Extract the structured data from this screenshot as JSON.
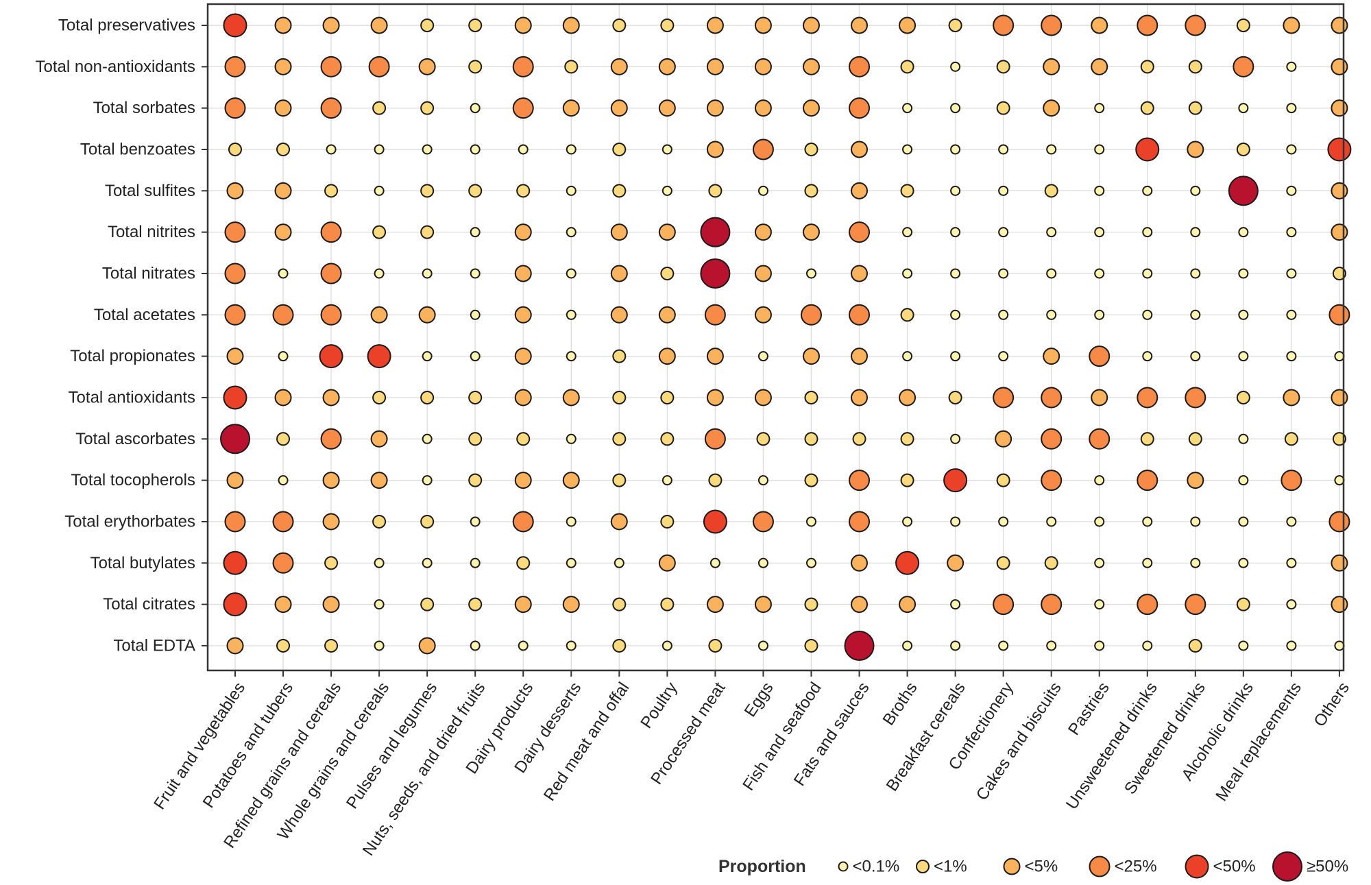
{
  "chart_data": {
    "type": "bubble-matrix",
    "rows": [
      "Total preservatives",
      "Total non-antioxidants",
      "Total sorbates",
      "Total benzoates",
      "Total sulfites",
      "Total nitrites",
      "Total nitrates",
      "Total acetates",
      "Total propionates",
      "Total antioxidants",
      "Total ascorbates",
      "Total tocopherols",
      "Total erythorbates",
      "Total butylates",
      "Total citrates",
      "Total EDTA"
    ],
    "columns": [
      "Fruit and vegetables",
      "Potatoes and tubers",
      "Refined grains and cereals",
      "Whole grains and cereals",
      "Pulses and legumes",
      "Nuts, seeds, and dried fruits",
      "Dairy products",
      "Dairy desserts",
      "Red meat and offal",
      "Poultry",
      "Processed meat",
      "Eggs",
      "Fish and seafood",
      "Fats and sauces",
      "Broths",
      "Breakfast cereals",
      "Confectionery",
      "Cakes and biscuits",
      "Pastries",
      "Unsweetened drinks",
      "Sweetened drinks",
      "Alcoholic drinks",
      "Meal replacements",
      "Others"
    ],
    "legend": {
      "title": "Proportion",
      "categories": [
        "<0.1%",
        "<1%",
        "<5%",
        "<25%",
        "<50%",
        "≥50%"
      ],
      "colors": [
        "#fff3b0",
        "#fbd97d",
        "#fbb25c",
        "#f68a46",
        "#ea4128",
        "#b8122e"
      ]
    },
    "values": [
      [
        4,
        2,
        2,
        2,
        1,
        1,
        2,
        2,
        1,
        1,
        2,
        2,
        2,
        2,
        2,
        1,
        3,
        3,
        2,
        3,
        3,
        1,
        2,
        2
      ],
      [
        3,
        2,
        3,
        3,
        2,
        1,
        3,
        1,
        2,
        2,
        2,
        2,
        2,
        3,
        1,
        0,
        1,
        2,
        2,
        1,
        1,
        3,
        0,
        2
      ],
      [
        3,
        2,
        3,
        1,
        1,
        0,
        3,
        2,
        2,
        2,
        2,
        2,
        2,
        3,
        0,
        0,
        1,
        2,
        0,
        1,
        1,
        0,
        0,
        2
      ],
      [
        1,
        1,
        0,
        0,
        0,
        0,
        0,
        0,
        1,
        0,
        2,
        3,
        1,
        2,
        0,
        0,
        0,
        0,
        0,
        4,
        2,
        1,
        0,
        4
      ],
      [
        2,
        2,
        1,
        0,
        1,
        1,
        1,
        0,
        1,
        0,
        1,
        0,
        1,
        2,
        1,
        0,
        0,
        1,
        0,
        0,
        0,
        5,
        0,
        2
      ],
      [
        3,
        2,
        3,
        1,
        1,
        0,
        2,
        0,
        2,
        2,
        5,
        2,
        2,
        3,
        0,
        0,
        0,
        0,
        0,
        0,
        0,
        0,
        0,
        2
      ],
      [
        3,
        0,
        3,
        0,
        0,
        0,
        2,
        0,
        2,
        1,
        5,
        2,
        0,
        2,
        0,
        0,
        0,
        0,
        0,
        0,
        0,
        0,
        0,
        1
      ],
      [
        3,
        3,
        3,
        2,
        2,
        0,
        2,
        0,
        2,
        2,
        3,
        2,
        3,
        3,
        1,
        0,
        0,
        0,
        0,
        0,
        0,
        0,
        0,
        3
      ],
      [
        2,
        0,
        4,
        4,
        0,
        0,
        2,
        0,
        1,
        2,
        2,
        0,
        2,
        2,
        0,
        0,
        0,
        2,
        3,
        0,
        0,
        0,
        0,
        0
      ],
      [
        4,
        2,
        2,
        1,
        1,
        1,
        2,
        2,
        1,
        1,
        2,
        2,
        1,
        2,
        2,
        1,
        3,
        3,
        2,
        3,
        3,
        1,
        2,
        2
      ],
      [
        5,
        1,
        3,
        2,
        0,
        1,
        1,
        0,
        1,
        1,
        3,
        1,
        1,
        1,
        1,
        0,
        2,
        3,
        3,
        1,
        1,
        0,
        1,
        1
      ],
      [
        2,
        0,
        2,
        2,
        0,
        1,
        2,
        2,
        1,
        0,
        1,
        0,
        1,
        3,
        1,
        4,
        1,
        3,
        0,
        3,
        2,
        0,
        3,
        0
      ],
      [
        3,
        3,
        2,
        1,
        1,
        0,
        3,
        0,
        2,
        1,
        4,
        3,
        0,
        3,
        0,
        0,
        0,
        0,
        0,
        0,
        0,
        0,
        0,
        3
      ],
      [
        4,
        3,
        1,
        0,
        0,
        0,
        1,
        0,
        0,
        2,
        0,
        0,
        0,
        2,
        4,
        2,
        1,
        1,
        0,
        0,
        0,
        0,
        0,
        2
      ],
      [
        4,
        2,
        2,
        0,
        1,
        1,
        2,
        2,
        1,
        1,
        2,
        2,
        1,
        2,
        2,
        0,
        3,
        3,
        0,
        3,
        3,
        1,
        0,
        2
      ],
      [
        2,
        1,
        1,
        0,
        2,
        0,
        0,
        0,
        1,
        0,
        1,
        0,
        1,
        5,
        0,
        0,
        0,
        0,
        0,
        0,
        1,
        0,
        0,
        0
      ]
    ]
  }
}
